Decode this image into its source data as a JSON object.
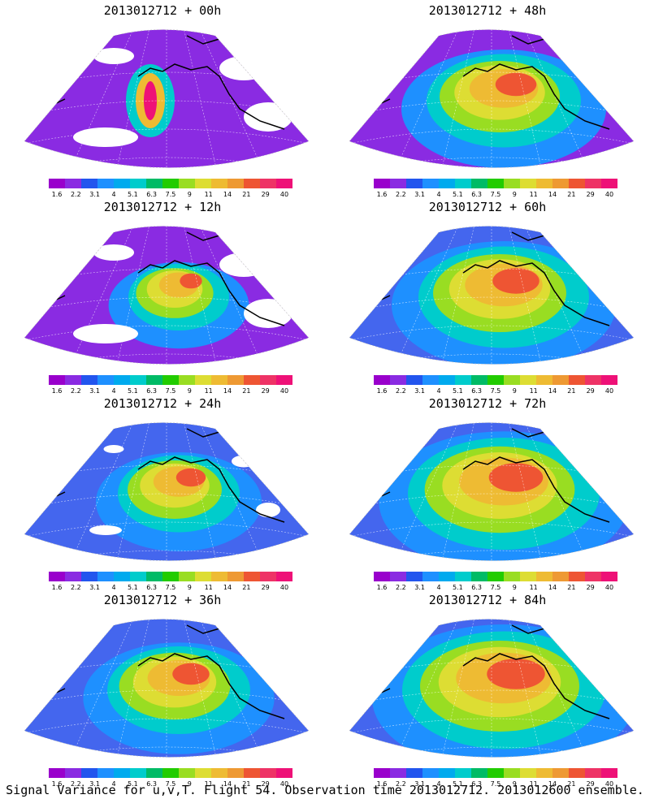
{
  "panels": [
    {
      "title": "2013012712 + 00h"
    },
    {
      "title": "2013012712 + 48h"
    },
    {
      "title": "2013012712 + 12h"
    },
    {
      "title": "2013012712 + 60h"
    },
    {
      "title": "2013012712 + 24h"
    },
    {
      "title": "2013012712 + 72h"
    },
    {
      "title": "2013012712 + 36h"
    },
    {
      "title": "2013012712 + 84h"
    }
  ],
  "colorbar": {
    "labels": [
      "1.6",
      "2.2",
      "3.1",
      "4",
      "5.1",
      "6.3",
      "7.5",
      "9",
      "11",
      "14",
      "21",
      "29",
      "40"
    ],
    "colors": [
      "#9900cc",
      "#8a2be2",
      "#2255ee",
      "#1e90ff",
      "#00aaee",
      "#00cccc",
      "#00bb66",
      "#22cc00",
      "#99dd22",
      "#dddd33",
      "#eebb33",
      "#ee9933",
      "#ee5533",
      "#ee3366",
      "#ee1177"
    ]
  },
  "footer": "Signal Variance for u,v,T. Flight 54. Observation time 2013012712. 2013012600 ensemble."
}
